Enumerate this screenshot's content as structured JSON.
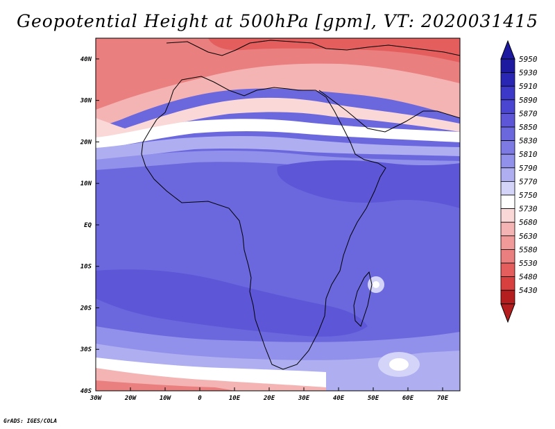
{
  "title": "Geopotential Height at 500hPa [gpm], VT: 2020031415",
  "credit": "GrADS: IGES/COLA",
  "map": {
    "lon_labels": [
      "30W",
      "20W",
      "10W",
      "0",
      "10E",
      "20E",
      "30E",
      "40E",
      "50E",
      "60E",
      "70E"
    ],
    "lon_values": [
      -30,
      -20,
      -10,
      0,
      10,
      20,
      30,
      40,
      50,
      60,
      70
    ],
    "lat_labels": [
      "40N",
      "30N",
      "20N",
      "10N",
      "EQ",
      "10S",
      "20S",
      "30S",
      "40S"
    ],
    "lat_values": [
      40,
      30,
      20,
      10,
      0,
      -10,
      -20,
      -30,
      -40
    ],
    "lon_range": [
      -30,
      75
    ],
    "lat_range": [
      -40,
      45
    ]
  },
  "colorbar": {
    "levels": [
      "5950",
      "5930",
      "5910",
      "5890",
      "5870",
      "5850",
      "5830",
      "5810",
      "5790",
      "5770",
      "5750",
      "5730",
      "5680",
      "5630",
      "5580",
      "5530",
      "5480",
      "5430"
    ],
    "colors": [
      "#1e1aa0",
      "#2a26b4",
      "#3c38c8",
      "#4a46d2",
      "#5d57d8",
      "#6b68de",
      "#7d7ae4",
      "#9190ea",
      "#aeaef0",
      "#d4d4f8",
      "#ffffff",
      "#fad8d8",
      "#f4b4b4",
      "#f09a9a",
      "#ea7f7f",
      "#e45e5e",
      "#d84040",
      "#b41e1e"
    ]
  }
}
